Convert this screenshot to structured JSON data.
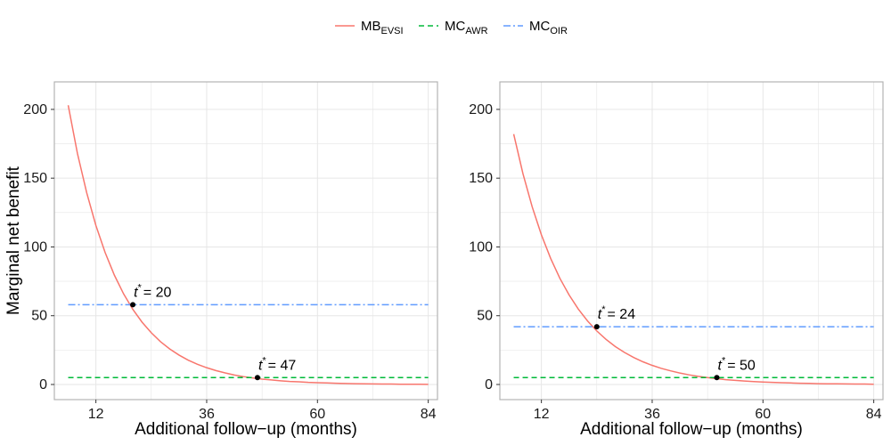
{
  "chart_data": [
    {
      "type": "line",
      "panel": "left",
      "xlabel": "Additional follow−up (months)",
      "ylabel": "Marginal net benefit",
      "xlim": [
        3,
        86
      ],
      "ylim": [
        -11,
        220
      ],
      "x_ticks": [
        12,
        36,
        60,
        84
      ],
      "y_ticks": [
        0,
        50,
        100,
        150,
        200
      ],
      "grid": true,
      "series": [
        {
          "key": "mb",
          "x": [
            6,
            8,
            10,
            12,
            14,
            16,
            18,
            20,
            22,
            24,
            26,
            28,
            30,
            32,
            34,
            36,
            38,
            40,
            42,
            44,
            46,
            48,
            50,
            52,
            54,
            56,
            58,
            60,
            62,
            64,
            66,
            68,
            70,
            72,
            74,
            76,
            78,
            80,
            82,
            84
          ],
          "y": [
            203,
            168,
            139.5,
            115.6,
            95.9,
            79.5,
            65.9,
            54.6,
            45.3,
            37.6,
            31.1,
            25.8,
            21.4,
            17.7,
            14.7,
            12.2,
            10.1,
            8.4,
            6.9,
            5.7,
            4.8,
            3.9,
            3.3,
            2.7,
            2.2,
            1.9,
            1.5,
            1.3,
            1.1,
            0.9,
            0.7,
            0.6,
            0.5,
            0.4,
            0.3,
            0.3,
            0.2,
            0.2,
            0.2,
            0.1
          ]
        },
        {
          "key": "awr",
          "x": [
            6,
            84
          ],
          "y": [
            5,
            5
          ]
        },
        {
          "key": "oir",
          "x": [
            6,
            84
          ],
          "y": [
            58,
            58
          ]
        }
      ],
      "annotations": [
        {
          "x": 20,
          "y": 58,
          "label": "t",
          "sup": "*",
          "value": "= 20"
        },
        {
          "x": 47,
          "y": 5,
          "label": "t",
          "sup": "*",
          "value": "= 47"
        }
      ]
    },
    {
      "type": "line",
      "panel": "right",
      "xlabel": "Additional follow−up (months)",
      "ylabel": "",
      "xlim": [
        3,
        86
      ],
      "ylim": [
        -11,
        220
      ],
      "x_ticks": [
        12,
        36,
        60,
        84
      ],
      "y_ticks": [
        0,
        50,
        100,
        150,
        200
      ],
      "grid": true,
      "series": [
        {
          "key": "mb",
          "x": [
            6,
            8,
            10,
            12,
            14,
            16,
            18,
            20,
            22,
            24,
            26,
            28,
            30,
            32,
            34,
            36,
            38,
            40,
            42,
            44,
            46,
            48,
            50,
            52,
            54,
            56,
            58,
            60,
            62,
            64,
            66,
            68,
            70,
            72,
            74,
            76,
            78,
            80,
            82,
            84
          ],
          "y": [
            182,
            153.3,
            129.2,
            108.8,
            91.7,
            77.2,
            65.1,
            54.8,
            46.2,
            38.9,
            32.8,
            27.6,
            23.3,
            19.6,
            16.5,
            13.9,
            11.7,
            9.9,
            8.3,
            7,
            5.9,
            5,
            4.2,
            3.5,
            3,
            2.5,
            2.1,
            1.8,
            1.5,
            1.3,
            1.1,
            0.9,
            0.8,
            0.6,
            0.5,
            0.5,
            0.4,
            0.3,
            0.3,
            0.2
          ]
        },
        {
          "key": "awr",
          "x": [
            6,
            84
          ],
          "y": [
            5,
            5
          ]
        },
        {
          "key": "oir",
          "x": [
            6,
            84
          ],
          "y": [
            42,
            42
          ]
        }
      ],
      "annotations": [
        {
          "x": 24,
          "y": 42,
          "label": "t",
          "sup": "*",
          "value": "= 24"
        },
        {
          "x": 50,
          "y": 5,
          "label": "t",
          "sup": "*",
          "value": "= 50"
        }
      ]
    }
  ],
  "legend": {
    "placement": "top-center",
    "items": [
      {
        "key": "mb",
        "main": "MB",
        "sub": "EVSI",
        "color": "#f8766d",
        "dash": "solid"
      },
      {
        "key": "awr",
        "main": "MC",
        "sub": "AWR",
        "color": "#00ba38",
        "dash": "dashed"
      },
      {
        "key": "oir",
        "main": "MC",
        "sub": "OIR",
        "color": "#619cff",
        "dash": "dotdash"
      }
    ]
  },
  "style": {
    "grid_color": "#e6e6e6",
    "panel_border": "#b3b3b3",
    "point_color": "#000000"
  }
}
